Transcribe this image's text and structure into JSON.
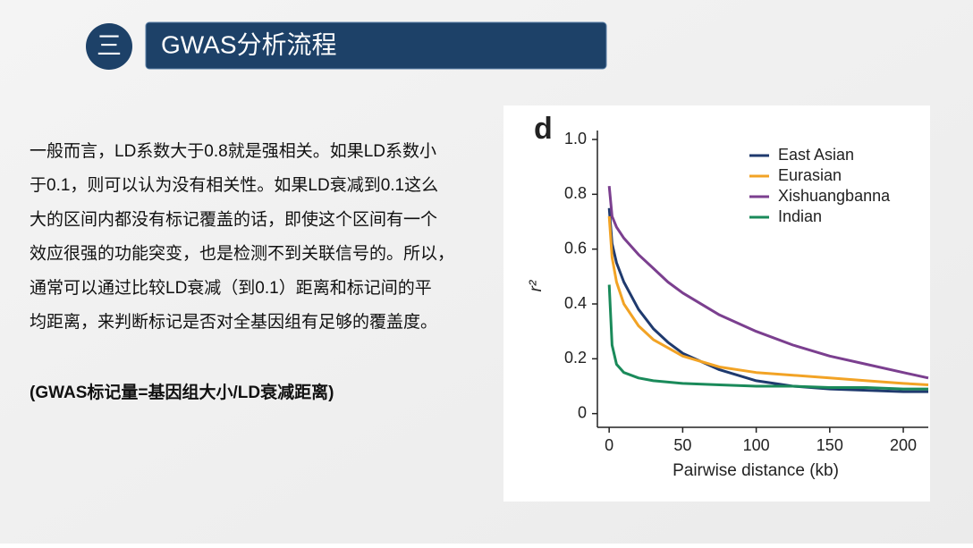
{
  "header": {
    "number": "三",
    "title": "GWAS分析流程"
  },
  "body": {
    "paragraph_lines": [
      "一般而言，LD系数大于0.8就是强相关。如果LD系数小",
      "于0.1，则可以认为没有相关性。如果LD衰减到0.1这么",
      "大的区间内都没有标记覆盖的话，即使这个区间有一个",
      "效应很强的功能突变，也是检测不到关联信号的。所以，",
      "通常可以通过比较LD衰减（到0.1）距离和标记间的平",
      "均距离，来判断标记是否对全基因组有足够的覆盖度。"
    ],
    "formula": "(GWAS标记量=基因组大小/LD衰减距离)"
  },
  "chart_data": {
    "type": "line",
    "panel_label": "d",
    "xlabel": "Pairwise distance (kb)",
    "ylabel": "r²",
    "x": [
      0,
      2,
      5,
      10,
      20,
      30,
      40,
      50,
      75,
      100,
      125,
      150,
      175,
      200,
      217
    ],
    "series": [
      {
        "name": "East Asian",
        "color": "#1f3a6e",
        "values": [
          0.75,
          0.62,
          0.55,
          0.48,
          0.38,
          0.31,
          0.26,
          0.22,
          0.16,
          0.12,
          0.1,
          0.09,
          0.085,
          0.08,
          0.08
        ]
      },
      {
        "name": "Eurasian",
        "color": "#f2a325",
        "values": [
          0.72,
          0.57,
          0.48,
          0.4,
          0.32,
          0.27,
          0.24,
          0.21,
          0.17,
          0.15,
          0.14,
          0.13,
          0.12,
          0.11,
          0.105
        ]
      },
      {
        "name": "Xishuangbanna",
        "color": "#7b3f8f",
        "values": [
          0.83,
          0.72,
          0.68,
          0.64,
          0.58,
          0.53,
          0.48,
          0.44,
          0.36,
          0.3,
          0.25,
          0.21,
          0.18,
          0.15,
          0.13
        ]
      },
      {
        "name": "Indian",
        "color": "#1a8a5a",
        "values": [
          0.47,
          0.25,
          0.18,
          0.15,
          0.13,
          0.12,
          0.115,
          0.11,
          0.105,
          0.1,
          0.1,
          0.095,
          0.095,
          0.09,
          0.09
        ]
      }
    ],
    "xlim": [
      -8,
      217
    ],
    "xticks": [
      0,
      50,
      100,
      150,
      200
    ],
    "ylim": [
      -0.05,
      1
    ],
    "yticks": [
      0,
      0.2,
      0.4,
      0.6,
      0.8,
      {
        "value": 1,
        "label": "1.0"
      }
    ],
    "legend": "top-right"
  }
}
